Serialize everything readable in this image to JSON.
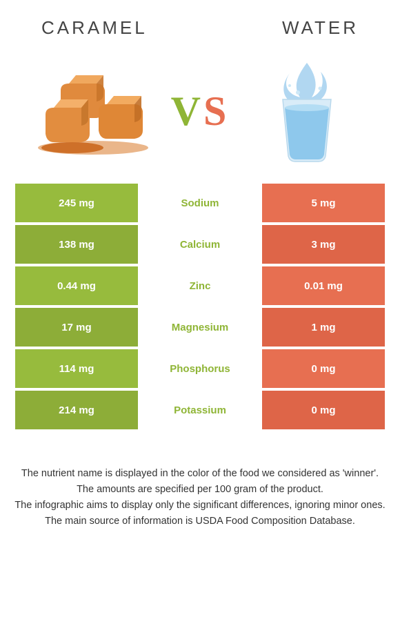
{
  "header": {
    "left_title": "Caramel",
    "right_title": "Water"
  },
  "vs": {
    "v": "V",
    "s": "S"
  },
  "colors": {
    "green": "#97bb3d",
    "green_alt": "#8dad38",
    "orange": "#e76f51",
    "orange_alt": "#de6548",
    "text_green": "#8fb536",
    "text_orange": "#e76f51",
    "background": "#ffffff",
    "text": "#333333"
  },
  "nutrients": [
    {
      "name": "Sodium",
      "left": "245 mg",
      "right": "5 mg",
      "winner": "left"
    },
    {
      "name": "Calcium",
      "left": "138 mg",
      "right": "3 mg",
      "winner": "left"
    },
    {
      "name": "Zinc",
      "left": "0.44 mg",
      "right": "0.01 mg",
      "winner": "left"
    },
    {
      "name": "Magnesium",
      "left": "17 mg",
      "right": "1 mg",
      "winner": "left"
    },
    {
      "name": "Phosphorus",
      "left": "114 mg",
      "right": "0 mg",
      "winner": "left"
    },
    {
      "name": "Potassium",
      "left": "214 mg",
      "right": "0 mg",
      "winner": "left"
    }
  ],
  "footnotes": [
    "The nutrient name is displayed in the color of the food we considered as 'winner'.",
    "The amounts are specified per 100 gram of the product.",
    "The infographic aims to display only the significant differences, ignoring minor ones.",
    "The main source of information is USDA Food Composition Database."
  ]
}
